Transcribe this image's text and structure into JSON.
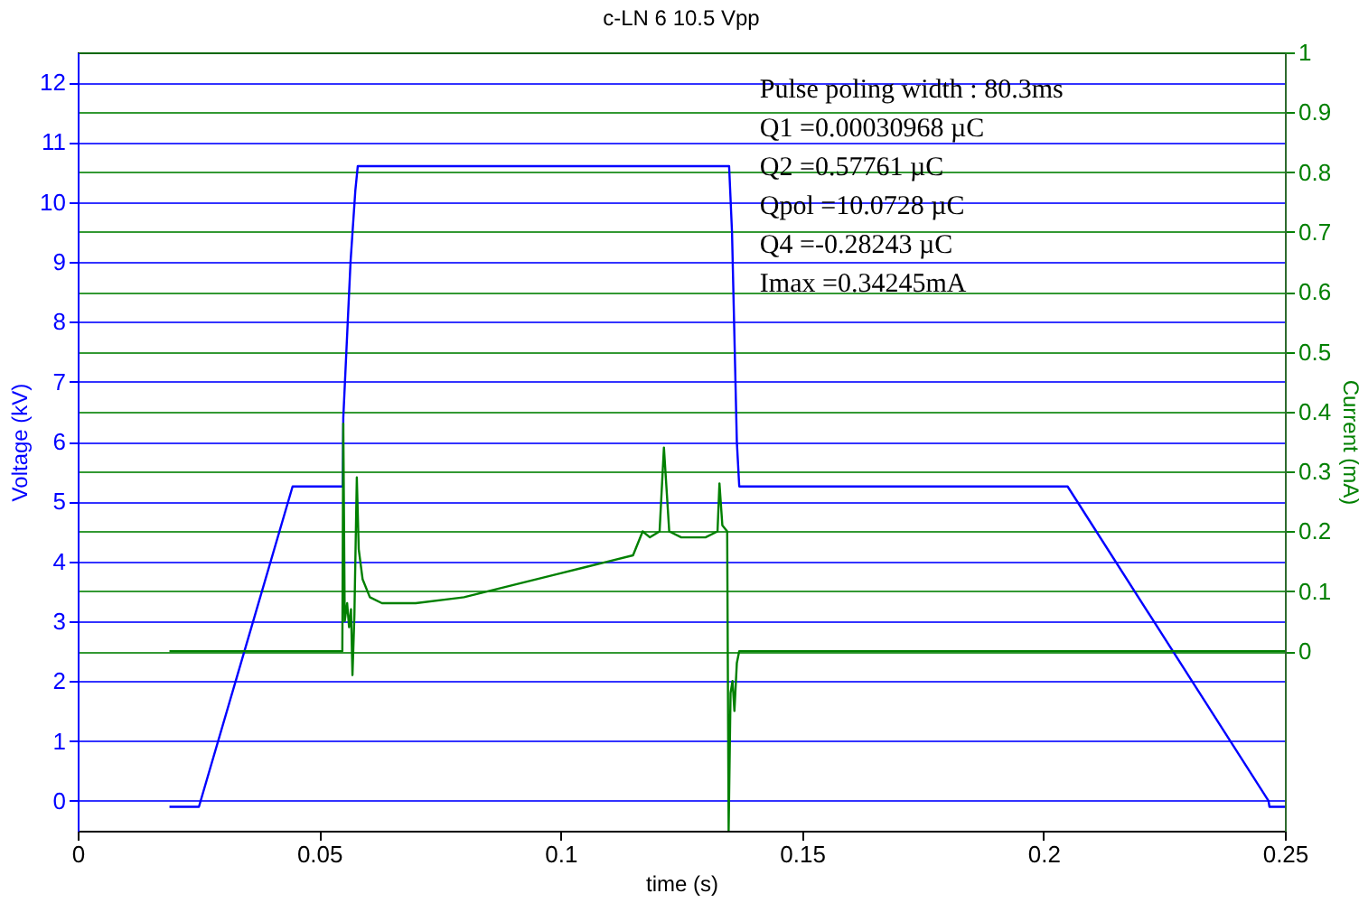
{
  "chart_data": {
    "type": "line",
    "title": "c-LN 6 10.5 Vpp",
    "xlabel": "time (s)",
    "ylabel": "Voltage (kV)",
    "y2label": "Current (mA)",
    "xlim": [
      0,
      0.25
    ],
    "xticks": [
      0,
      0.05,
      0.1,
      0.15,
      0.2,
      0.25
    ],
    "ylim": [
      -0.5,
      12.5
    ],
    "yticks": [
      0,
      1,
      2,
      3,
      4,
      5,
      6,
      7,
      8,
      9,
      10,
      11,
      12
    ],
    "y2lim": [
      -0.3,
      1
    ],
    "y2ticks": [
      0,
      0.1,
      0.2,
      0.3,
      0.4,
      0.5,
      0.6,
      0.7,
      0.8,
      0.9,
      1
    ],
    "grid": "y",
    "annotations": [
      "Pulse poling width : 80.3ms",
      "Q1 =0.00030968 µC",
      "Q2 =0.57761 µC",
      "Qpol =10.0728 µC",
      "Q4 =-0.28243 µC",
      "Imax =0.34245mA"
    ],
    "series": [
      {
        "color": "#0000ff",
        "x": [
          0.019,
          0.0251,
          0.0445,
          0.0549,
          0.055,
          0.0565,
          0.0575,
          0.058,
          0.1349,
          0.1355,
          0.1365,
          0.137,
          0.205,
          0.2466,
          0.2468,
          0.25
        ],
        "values": [
          -0.1,
          -0.1,
          5.25,
          5.25,
          6.4,
          9,
          10.2,
          10.6,
          10.6,
          9.5,
          6,
          5.25,
          5.25,
          0,
          -0.1,
          -0.1
        ]
      },
      {
        "color": "#008000",
        "axis": "y2",
        "x": [
          0.019,
          0.0548,
          0.055,
          0.0553,
          0.0558,
          0.0562,
          0.0566,
          0.0569,
          0.0573,
          0.0578,
          0.0582,
          0.059,
          0.0605,
          0.063,
          0.07,
          0.08,
          0.09,
          0.1,
          0.105,
          0.11,
          0.115,
          0.117,
          0.1185,
          0.1205,
          0.1214,
          0.1225,
          0.125,
          0.13,
          0.1325,
          0.1329,
          0.1335,
          0.1345,
          0.1348,
          0.1352,
          0.1356,
          0.136,
          0.1365,
          0.137,
          0.25
        ],
        "values": [
          0,
          0,
          0.38,
          0.05,
          0.08,
          0.04,
          0.07,
          -0.04,
          0.06,
          0.29,
          0.17,
          0.12,
          0.09,
          0.08,
          0.08,
          0.09,
          0.11,
          0.13,
          0.14,
          0.15,
          0.16,
          0.2,
          0.19,
          0.2,
          0.34,
          0.2,
          0.19,
          0.19,
          0.2,
          0.28,
          0.21,
          0.2,
          -0.3,
          -0.07,
          -0.05,
          -0.1,
          -0.02,
          0,
          0
        ]
      }
    ]
  }
}
